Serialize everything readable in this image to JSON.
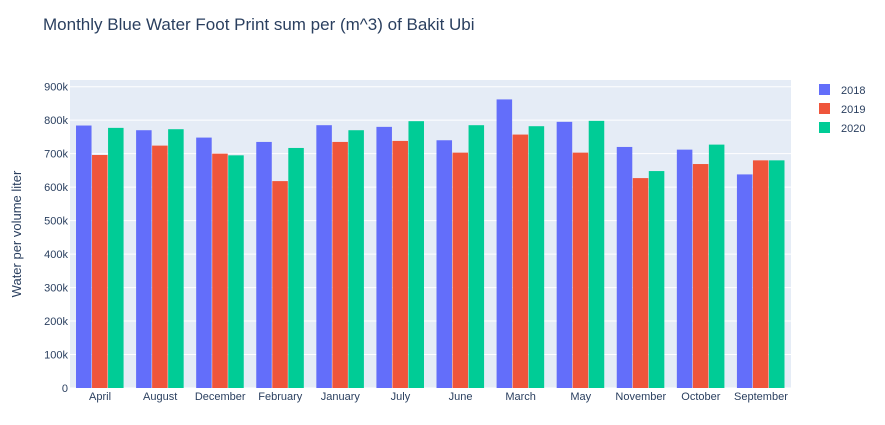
{
  "chart_data": {
    "type": "bar",
    "title": "Monthly Blue Water Foot Print sum per (m^3) of Bakit Ubi",
    "xlabel": "",
    "ylabel": "Water per volume liter",
    "ylim": [
      0,
      920000
    ],
    "yticks": [
      0,
      100000,
      200000,
      300000,
      400000,
      500000,
      600000,
      700000,
      800000,
      900000
    ],
    "ytick_labels": [
      "0",
      "100k",
      "200k",
      "300k",
      "400k",
      "500k",
      "600k",
      "700k",
      "800k",
      "900k"
    ],
    "grid": true,
    "legend_position": "top-right",
    "categories": [
      "April",
      "August",
      "December",
      "February",
      "January",
      "July",
      "June",
      "March",
      "May",
      "November",
      "October",
      "September"
    ],
    "series": [
      {
        "name": "2018",
        "color": "#636efa",
        "values": [
          784000,
          770000,
          748000,
          735000,
          785000,
          780000,
          740000,
          862000,
          795000,
          720000,
          712000,
          638000
        ]
      },
      {
        "name": "2019",
        "color": "#ef553b",
        "values": [
          696000,
          724000,
          700000,
          618000,
          735000,
          738000,
          703000,
          757000,
          703000,
          627000,
          669000,
          680000
        ]
      },
      {
        "name": "2020",
        "color": "#00cc96",
        "values": [
          777000,
          773000,
          695000,
          717000,
          770000,
          797000,
          785000,
          782000,
          798000,
          648000,
          727000,
          680000
        ]
      }
    ]
  }
}
